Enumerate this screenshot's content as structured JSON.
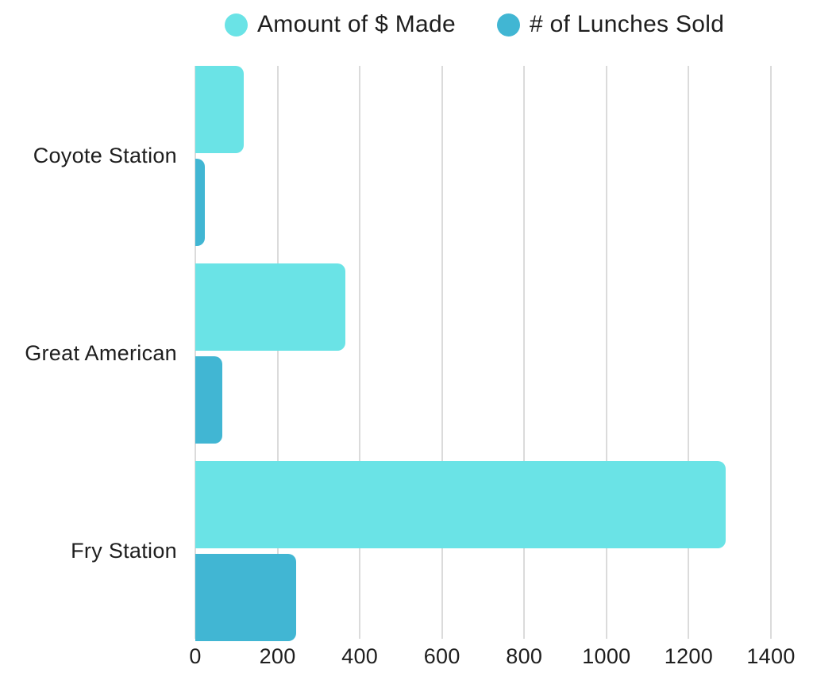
{
  "chart_data": {
    "type": "bar",
    "orientation": "horizontal",
    "title": "",
    "categories": [
      "Coyote Station",
      "Great American",
      "Fry Station"
    ],
    "series": [
      {
        "name": "Amount of $ Made",
        "color": "#6AE3E6",
        "values": [
          117,
          364,
          1289
        ]
      },
      {
        "name": "# of Lunches Sold",
        "color": "#41B6D3",
        "values": [
          23,
          66,
          246
        ]
      }
    ],
    "xlabel": "",
    "ylabel": "",
    "xlim": [
      0,
      1400
    ],
    "xticks": [
      0,
      200,
      400,
      600,
      800,
      1000,
      1200,
      1400
    ],
    "grid": "vertical-only",
    "gridline_color": "#dbdbdb",
    "text_color": "#1e1e1e",
    "background_color": "#ffffff",
    "legend_position": "top"
  }
}
